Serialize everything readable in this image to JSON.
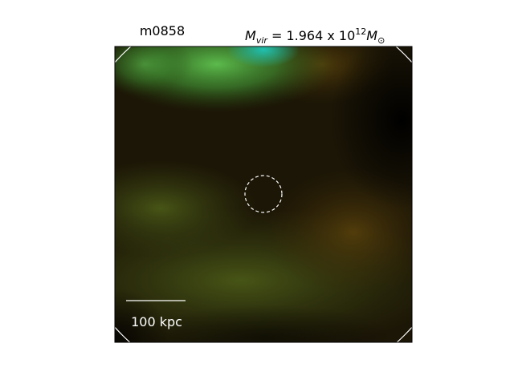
{
  "header": {
    "name": "m0858",
    "mass": {
      "symbol": "M",
      "symbol_subscript": "vir",
      "value_text": " = 1.964 x 10",
      "exponent": "12",
      "unit": "M",
      "unit_subscript": "⊙"
    }
  },
  "scale_bar": {
    "label": "100 kpc"
  }
}
